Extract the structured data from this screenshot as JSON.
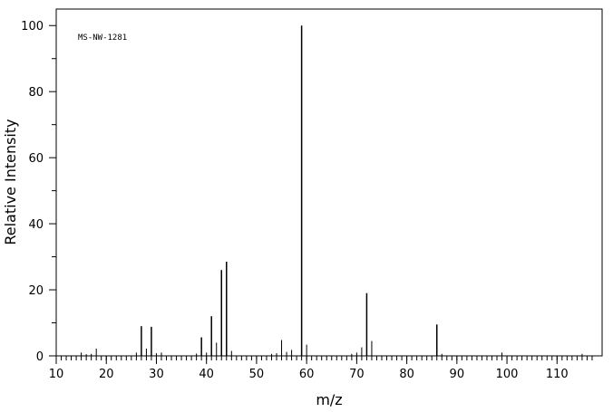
{
  "chart_data": {
    "type": "bar",
    "title": "",
    "annotation": "MS-NW-1281",
    "xlabel": "m/z",
    "ylabel": "Relative Intensity",
    "xlim": [
      10,
      119
    ],
    "ylim": [
      0,
      105
    ],
    "x_ticks": [
      10,
      20,
      30,
      40,
      50,
      60,
      70,
      80,
      90,
      100,
      110
    ],
    "y_ticks": [
      0,
      20,
      40,
      60,
      80,
      100
    ],
    "grid": false,
    "peaks": [
      {
        "mz": 15,
        "intensity": 1.0
      },
      {
        "mz": 16,
        "intensity": 0.5
      },
      {
        "mz": 17,
        "intensity": 0.6
      },
      {
        "mz": 18,
        "intensity": 2.2
      },
      {
        "mz": 26,
        "intensity": 1.0
      },
      {
        "mz": 27,
        "intensity": 9.0
      },
      {
        "mz": 28,
        "intensity": 2.2
      },
      {
        "mz": 29,
        "intensity": 8.8
      },
      {
        "mz": 30,
        "intensity": 0.8
      },
      {
        "mz": 31,
        "intensity": 1.0
      },
      {
        "mz": 38,
        "intensity": 0.7
      },
      {
        "mz": 39,
        "intensity": 5.6
      },
      {
        "mz": 40,
        "intensity": 1.0
      },
      {
        "mz": 41,
        "intensity": 12.0
      },
      {
        "mz": 42,
        "intensity": 4.0
      },
      {
        "mz": 43,
        "intensity": 26.0
      },
      {
        "mz": 44,
        "intensity": 28.5
      },
      {
        "mz": 45,
        "intensity": 1.5
      },
      {
        "mz": 53,
        "intensity": 0.6
      },
      {
        "mz": 54,
        "intensity": 0.8
      },
      {
        "mz": 55,
        "intensity": 4.8
      },
      {
        "mz": 56,
        "intensity": 1.2
      },
      {
        "mz": 57,
        "intensity": 1.8
      },
      {
        "mz": 59,
        "intensity": 100.0
      },
      {
        "mz": 60,
        "intensity": 3.4
      },
      {
        "mz": 69,
        "intensity": 0.6
      },
      {
        "mz": 70,
        "intensity": 1.0
      },
      {
        "mz": 71,
        "intensity": 2.6
      },
      {
        "mz": 72,
        "intensity": 19.0
      },
      {
        "mz": 73,
        "intensity": 4.5
      },
      {
        "mz": 86,
        "intensity": 9.5
      },
      {
        "mz": 87,
        "intensity": 0.6
      },
      {
        "mz": 99,
        "intensity": 1.0
      },
      {
        "mz": 115,
        "intensity": 0.6
      }
    ]
  }
}
